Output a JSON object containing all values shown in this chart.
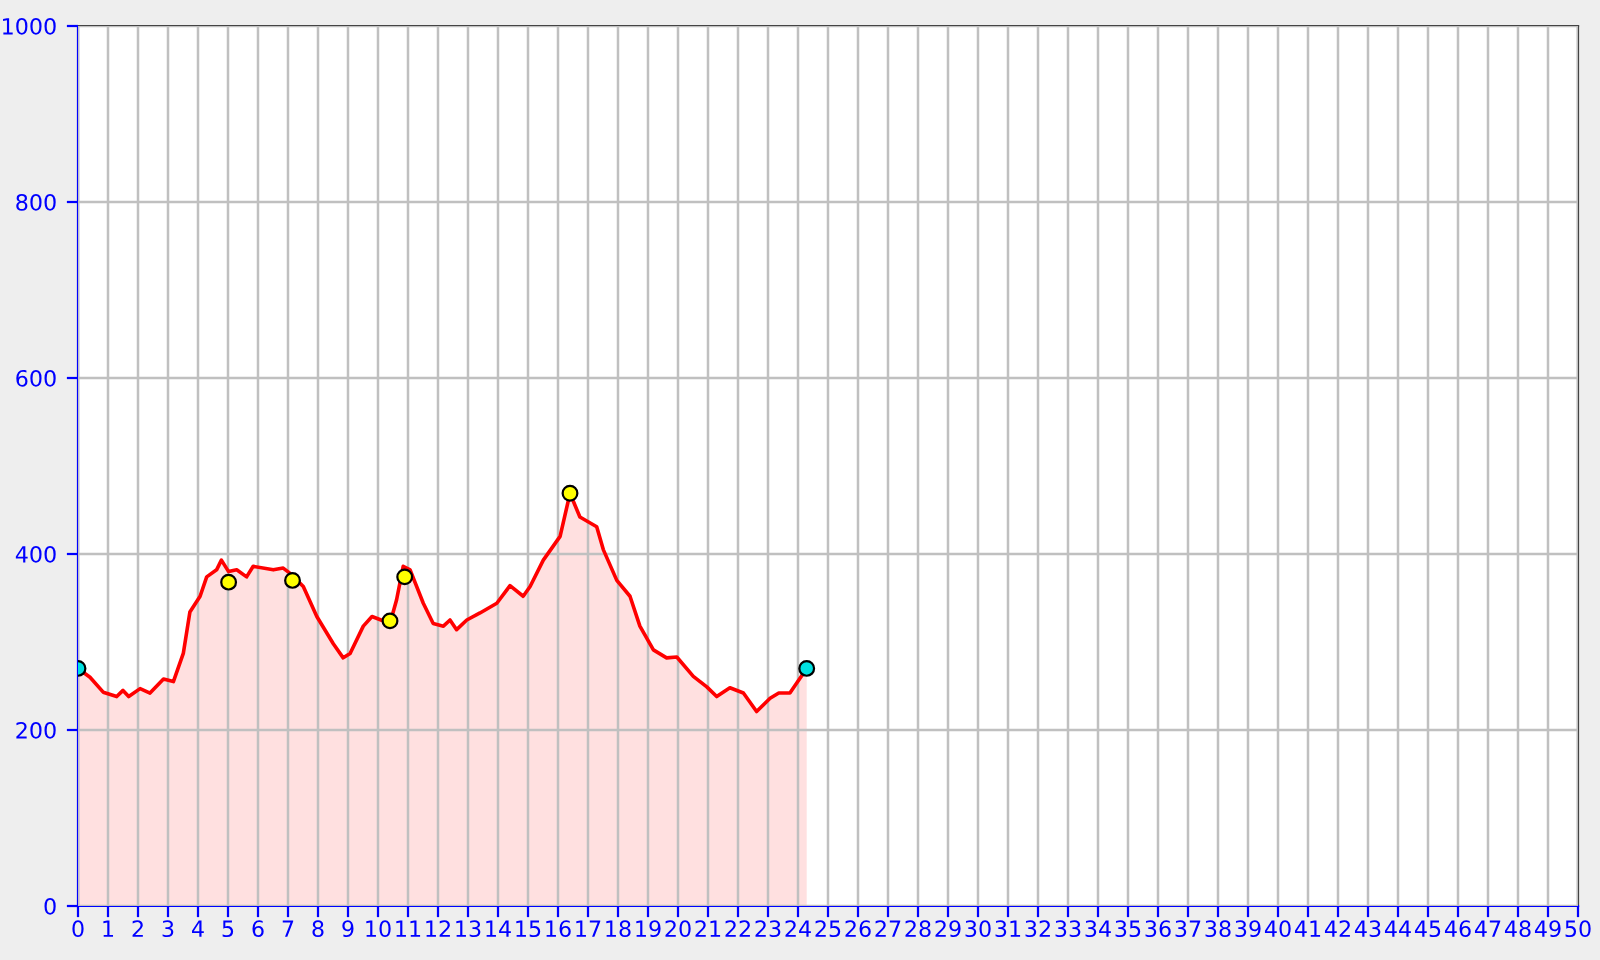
{
  "chart_data": {
    "type": "area",
    "series": [
      {
        "color": "#ff0000",
        "x": [
          0,
          0.4,
          0.84,
          1.29,
          1.5,
          1.69,
          2.07,
          2.4,
          2.85,
          3.18,
          3.51,
          3.73,
          4.07,
          4.29,
          4.62,
          4.78,
          5.02,
          5.29,
          5.62,
          5.84,
          6.51,
          6.84,
          7.07,
          7.51,
          7.96,
          8.51,
          8.84,
          9.07,
          9.51,
          9.8,
          10.4,
          10.62,
          10.84,
          11.07,
          11.51,
          11.84,
          12.18,
          12.4,
          12.62,
          12.96,
          13.4,
          13.96,
          14.4,
          14.84,
          15.07,
          15.51,
          16.07,
          16.4,
          16.73,
          17.29,
          17.51,
          17.96,
          18.4,
          18.73,
          19.18,
          19.62,
          19.96,
          20.51,
          20.96,
          21.29,
          21.73,
          22.18,
          22.62,
          23.07,
          23.36,
          23.73,
          24.29
        ],
        "values": [
          270,
          260,
          243,
          238,
          245,
          238,
          247,
          242,
          258,
          255,
          287,
          334,
          352,
          374,
          382,
          393,
          380,
          382,
          374,
          386,
          382,
          384,
          378,
          363,
          329,
          298,
          282,
          287,
          318,
          329,
          321,
          348,
          386,
          382,
          344,
          321,
          318,
          325,
          314,
          325,
          333,
          344,
          364,
          352,
          363,
          393,
          420,
          469,
          442,
          431,
          405,
          370,
          352,
          318,
          291,
          282,
          283,
          261,
          249,
          238,
          248,
          242,
          221,
          236,
          242,
          242,
          270
        ]
      },
      {
        "type": "scatter",
        "marker": "circle",
        "color": "#ffff00",
        "x": [
          5.02,
          7.15,
          10.4,
          10.89,
          16.4
        ],
        "values": [
          368,
          370,
          324,
          374,
          469
        ]
      },
      {
        "type": "scatter",
        "marker": "circle",
        "color": "#00e0e0",
        "x": [
          0,
          24.29
        ],
        "values": [
          270,
          270
        ]
      }
    ],
    "xlim": [
      0,
      50
    ],
    "xticks": [
      0,
      1,
      2,
      3,
      4,
      5,
      6,
      7,
      8,
      9,
      10,
      11,
      12,
      13,
      14,
      15,
      16,
      17,
      18,
      19,
      20,
      21,
      22,
      23,
      24,
      25,
      26,
      27,
      28,
      29,
      30,
      31,
      32,
      33,
      34,
      35,
      36,
      37,
      38,
      39,
      40,
      41,
      42,
      43,
      44,
      45,
      46,
      47,
      48,
      49,
      50
    ],
    "ylim": [
      0,
      1000
    ],
    "yticks": [
      0,
      200,
      400,
      600,
      800,
      1000
    ],
    "grid": true,
    "legend": false
  }
}
